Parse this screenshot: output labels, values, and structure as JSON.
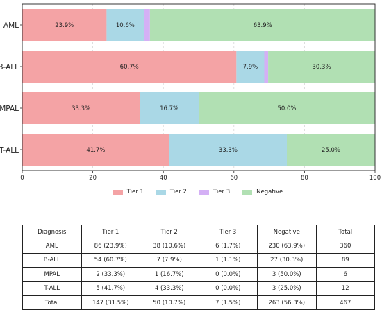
{
  "chart_data": {
    "type": "bar",
    "orientation": "horizontal",
    "stacked": true,
    "categories": [
      "AML",
      "B-ALL",
      "MPAL",
      "T-ALL"
    ],
    "series": [
      {
        "name": "Tier 1",
        "color": "#f4a3a5",
        "values": [
          23.9,
          60.7,
          33.3,
          41.7
        ],
        "labels": [
          "23.9%",
          "60.7%",
          "33.3%",
          "41.7%"
        ]
      },
      {
        "name": "Tier 2",
        "color": "#aad8e6",
        "values": [
          10.6,
          7.9,
          16.7,
          33.3
        ],
        "labels": [
          "10.6%",
          "7.9%",
          "16.7%",
          "33.3%"
        ]
      },
      {
        "name": "Tier 3",
        "color": "#d4b0f5",
        "values": [
          1.7,
          1.1,
          0.0,
          0.0
        ],
        "labels": [
          "",
          "",
          "",
          ""
        ]
      },
      {
        "name": "Negative",
        "color": "#b1e0b3",
        "values": [
          63.9,
          30.3,
          50.0,
          25.0
        ],
        "labels": [
          "63.9%",
          "30.3%",
          "50.0%",
          "25.0%"
        ]
      }
    ],
    "xlim": [
      0,
      100
    ],
    "xticks": [
      0,
      20,
      40,
      60,
      80,
      100
    ],
    "grid": true,
    "legend_position": "bottom"
  },
  "table": {
    "headers": [
      "Diagnosis",
      "Tier 1",
      "Tier 2",
      "Tier 3",
      "Negative",
      "Total"
    ],
    "rows": [
      [
        "AML",
        "86 (23.9%)",
        "38 (10.6%)",
        "6 (1.7%)",
        "230 (63.9%)",
        "360"
      ],
      [
        "B-ALL",
        "54 (60.7%)",
        "7 (7.9%)",
        "1 (1.1%)",
        "27 (30.3%)",
        "89"
      ],
      [
        "MPAL",
        "2 (33.3%)",
        "1 (16.7%)",
        "0 (0.0%)",
        "3 (50.0%)",
        "6"
      ],
      [
        "T-ALL",
        "5 (41.7%)",
        "4 (33.3%)",
        "0 (0.0%)",
        "3 (25.0%)",
        "12"
      ],
      [
        "Total",
        "147 (31.5%)",
        "50 (10.7%)",
        "7 (1.5%)",
        "263 (56.3%)",
        "467"
      ]
    ]
  }
}
